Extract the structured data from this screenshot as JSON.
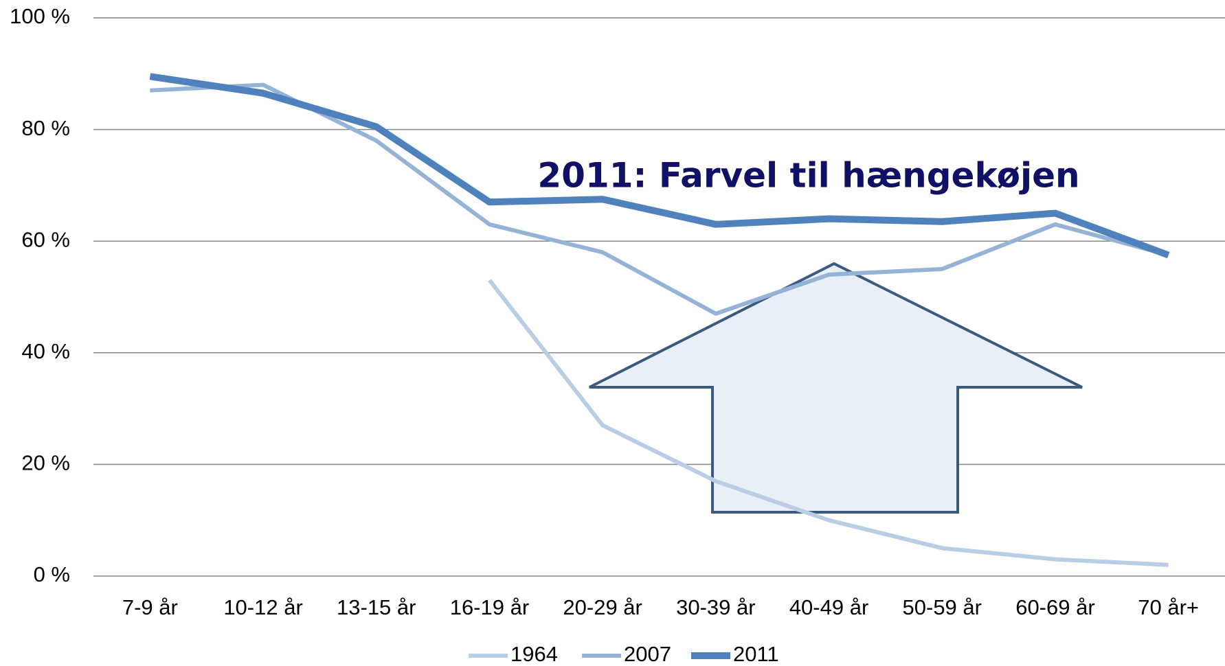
{
  "chart_data": {
    "type": "line",
    "annotation": "2011: Farvel til hængekøjen",
    "categories": [
      "7-9 år",
      "10-12 år",
      "13-15 år",
      "16-19 år",
      "20-29 år",
      "30-39 år",
      "40-49 år",
      "50-59 år",
      "60-69 år",
      "70 år+"
    ],
    "series": [
      {
        "name": "1964",
        "color": "#b9cde5",
        "width": 6,
        "values": [
          null,
          null,
          null,
          53,
          27,
          17,
          10,
          5,
          3,
          2
        ]
      },
      {
        "name": "2007",
        "color": "#95b3d7",
        "width": 6,
        "values": [
          87,
          88,
          78,
          63,
          58,
          47,
          54,
          55,
          63,
          57.5
        ]
      },
      {
        "name": "2011",
        "color": "#4f81bd",
        "width": 10,
        "values": [
          89.5,
          86.5,
          80.5,
          67,
          67.5,
          63,
          64,
          63.5,
          65,
          57.5
        ]
      }
    ],
    "ylim": [
      0,
      100
    ],
    "yticks": [
      {
        "value": 0,
        "label": "0 %"
      },
      {
        "value": 20,
        "label": "20 %"
      },
      {
        "value": 40,
        "label": "40 %"
      },
      {
        "value": 60,
        "label": "60 %"
      },
      {
        "value": 80,
        "label": "80 %"
      },
      {
        "value": 100,
        "label": "100 %"
      }
    ],
    "grid": true,
    "legend": "bottom"
  }
}
